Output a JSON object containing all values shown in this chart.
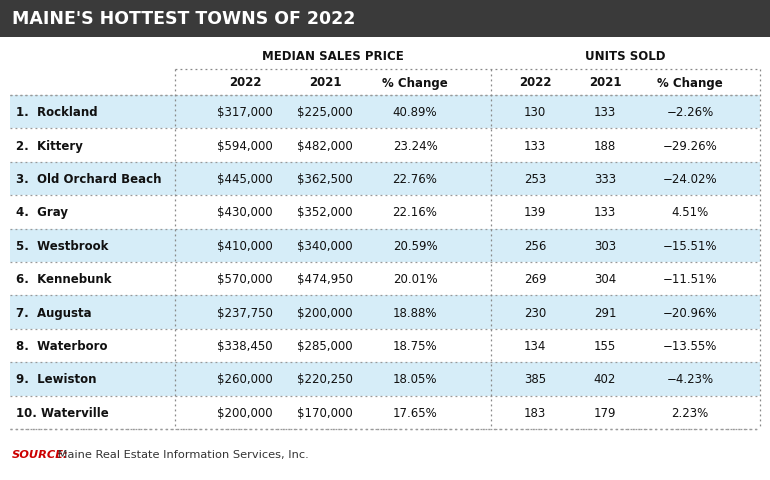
{
  "title": "MAINE'S HOTTEST TOWNS OF 2022",
  "title_bg": "#3a3a3a",
  "title_color": "#ffffff",
  "header1": "MEDIAN SALES PRICE",
  "header2": "UNITS SOLD",
  "col_headers": [
    "2022",
    "2021",
    "% Change",
    "2022",
    "2021",
    "% Change"
  ],
  "towns": [
    "1.  Rockland",
    "2.  Kittery",
    "3.  Old Orchard Beach",
    "4.  Gray",
    "5.  Westbrook",
    "6.  Kennebunk",
    "7.  Augusta",
    "8.  Waterboro",
    "9.  Lewiston",
    "10. Waterville"
  ],
  "med_2022": [
    "$317,000",
    "$594,000",
    "$445,000",
    "$430,000",
    "$410,000",
    "$570,000",
    "$237,750",
    "$338,450",
    "$260,000",
    "$200,000"
  ],
  "med_2021": [
    "$225,000",
    "$482,000",
    "$362,500",
    "$352,000",
    "$340,000",
    "$474,950",
    "$200,000",
    "$285,000",
    "$220,250",
    "$170,000"
  ],
  "med_pct": [
    "40.89%",
    "23.24%",
    "22.76%",
    "22.16%",
    "20.59%",
    "20.01%",
    "18.88%",
    "18.75%",
    "18.05%",
    "17.65%"
  ],
  "units_2022": [
    "130",
    "133",
    "253",
    "139",
    "256",
    "269",
    "230",
    "134",
    "385",
    "183"
  ],
  "units_2021": [
    "133",
    "188",
    "333",
    "133",
    "303",
    "304",
    "291",
    "155",
    "402",
    "179"
  ],
  "units_pct": [
    "−2.26%",
    "−29.26%",
    "−24.02%",
    "4.51%",
    "−15.51%",
    "−11.51%",
    "−20.96%",
    "−13.55%",
    "−4.23%",
    "2.23%"
  ],
  "row_colors": [
    "#d6edf8",
    "#ffffff",
    "#d6edf8",
    "#ffffff",
    "#d6edf8",
    "#ffffff",
    "#d6edf8",
    "#ffffff",
    "#d6edf8",
    "#ffffff"
  ],
  "source_label": "SOURCE:",
  "source_text": " Maine Real Estate Information Services, Inc.",
  "source_color": "#cc0000",
  "source_text_color": "#333333",
  "bg_color": "#ffffff"
}
